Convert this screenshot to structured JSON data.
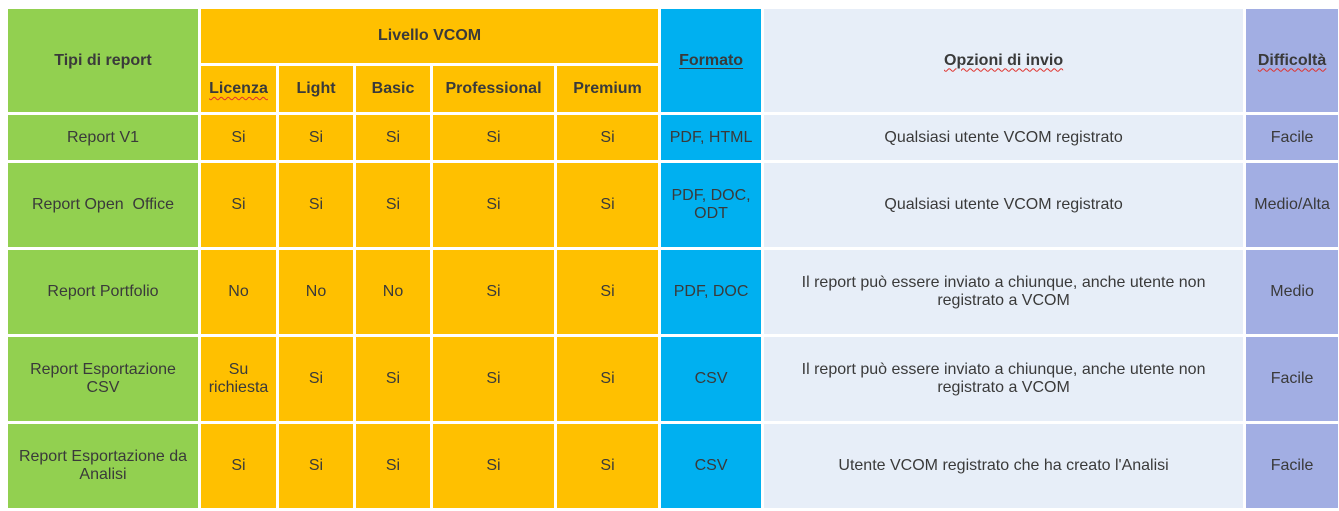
{
  "header": {
    "tipi": "Tipi di report",
    "livello": "Livello VCOM",
    "formato": "Formato",
    "opzioni": "Opzioni di invio",
    "difficolta": "Difficoltà",
    "levels": [
      "Licenza",
      "Light",
      "Basic",
      "Professional",
      "Premium"
    ]
  },
  "rows": [
    {
      "name": "Report V1",
      "levels": [
        "Si",
        "Si",
        "Si",
        "Si",
        "Si"
      ],
      "formato": "PDF, HTML",
      "opzioni": "Qualsiasi utente VCOM registrato",
      "difficolta": "Facile"
    },
    {
      "name": "Report Open  Office",
      "levels": [
        "Si",
        "Si",
        "Si",
        "Si",
        "Si"
      ],
      "formato": "PDF, DOC, ODT",
      "opzioni": "Qualsiasi utente VCOM registrato",
      "difficolta": "Medio/Alta"
    },
    {
      "name": "Report Portfolio",
      "levels": [
        "No",
        "No",
        "No",
        "Si",
        "Si"
      ],
      "formato": "PDF, DOC",
      "opzioni": "Il report può essere inviato a chiunque, anche utente non registrato a VCOM",
      "difficolta": "Medio"
    },
    {
      "name": "Report Esportazione CSV",
      "levels": [
        "Su richiesta",
        "Si",
        "Si",
        "Si",
        "Si"
      ],
      "formato": "CSV",
      "opzioni": "Il report può essere inviato a chiunque, anche utente non registrato a VCOM",
      "difficolta": "Facile"
    },
    {
      "name": "Report Esportazione da Analisi",
      "levels": [
        "Si",
        "Si",
        "Si",
        "Si",
        "Si"
      ],
      "formato": "CSV",
      "opzioni": "Utente VCOM registrato che ha creato l'Analisi",
      "difficolta": "Facile"
    }
  ],
  "colors": {
    "green": "#92d050",
    "amber": "#ffc000",
    "blue": "#00b0f0",
    "light": "#e7eef8",
    "lavender": "#a2aee3"
  }
}
